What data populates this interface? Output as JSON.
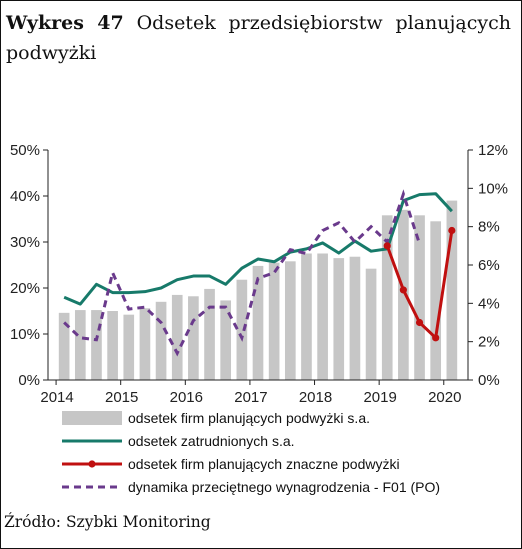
{
  "header": {
    "figure_label": "Wykres 47",
    "title": "Odsetek przedsiębiorstw planujących podwyżki"
  },
  "footer": {
    "source": "Źródło: Szybki Monitoring"
  },
  "colors": {
    "bars": "#c6c6c6",
    "employment": "#177a6a",
    "significant_raises": "#c01010",
    "wage_dynamics": "#6a3a8c",
    "axis": "#222222"
  },
  "chart_data": {
    "type": "bar",
    "title": "Odsetek przedsiębiorstw planujących podwyżki",
    "xlabel": "",
    "ylabel": "",
    "x_axis": {
      "ticks": [
        "2014",
        "2015",
        "2016",
        "2017",
        "2018",
        "2019",
        "2020"
      ],
      "start": 2014,
      "end": 2020
    },
    "y_left": {
      "range": [
        0,
        50
      ],
      "ticks": [
        "0%",
        "10%",
        "20%",
        "30%",
        "40%",
        "50%"
      ]
    },
    "y_right": {
      "range": [
        0,
        12
      ],
      "ticks": [
        "0%",
        "2%",
        "4%",
        "6%",
        "8%",
        "10%",
        "12%"
      ]
    },
    "grid": false,
    "legend_position": "bottom",
    "quarters": [
      "2014Q1",
      "2014Q2",
      "2014Q3",
      "2014Q4",
      "2015Q1",
      "2015Q2",
      "2015Q3",
      "2015Q4",
      "2016Q1",
      "2016Q2",
      "2016Q3",
      "2016Q4",
      "2017Q1",
      "2017Q2",
      "2017Q3",
      "2017Q4",
      "2018Q1",
      "2018Q2",
      "2018Q3",
      "2018Q4",
      "2019Q1",
      "2019Q2",
      "2019Q3",
      "2019Q4",
      "2020Q1"
    ],
    "series": [
      {
        "name": "odsetek firm planujących podwyżki s.a.",
        "kind": "bar",
        "axis": "left",
        "values": [
          14.6,
          15.2,
          15.2,
          15.0,
          14.2,
          15.6,
          17.0,
          18.5,
          18.2,
          19.8,
          17.3,
          21.8,
          24.8,
          25.5,
          25.8,
          27.5,
          27.5,
          26.5,
          26.8,
          24.2,
          35.8,
          37.0,
          35.8,
          34.5,
          39.0
        ]
      },
      {
        "name": "odsetek zatrudnionych s.a.",
        "kind": "line",
        "axis": "left",
        "values": [
          18.0,
          16.5,
          20.8,
          19.0,
          19.0,
          19.2,
          20.0,
          21.8,
          22.6,
          22.6,
          20.8,
          24.3,
          26.3,
          25.7,
          27.8,
          28.5,
          29.8,
          27.6,
          30.2,
          28.0,
          28.5,
          39.0,
          40.3,
          40.5,
          36.7
        ]
      },
      {
        "name": "odsetek firm planujących znaczne podwyżki",
        "kind": "line-markers",
        "axis": "left",
        "x_indices": [
          20,
          21,
          22,
          23,
          24
        ],
        "values": [
          7.0,
          4.7,
          3.0,
          2.2,
          7.8
        ]
      },
      {
        "name": "dynamika przeciętnego wynagrodzenia - F01 (PO)",
        "kind": "dashed",
        "axis": "right",
        "x_indices": [
          0,
          1,
          2,
          3,
          4,
          5,
          6,
          7,
          8,
          9,
          10,
          11,
          12,
          13,
          14,
          15,
          16,
          17,
          18,
          19,
          20,
          21,
          22
        ],
        "values": [
          3.0,
          2.2,
          2.1,
          5.6,
          3.7,
          3.8,
          3.0,
          1.4,
          3.1,
          3.8,
          3.8,
          2.2,
          5.3,
          5.6,
          6.8,
          6.6,
          7.8,
          8.2,
          7.2,
          8.0,
          7.2,
          9.7,
          7.1
        ]
      }
    ]
  }
}
